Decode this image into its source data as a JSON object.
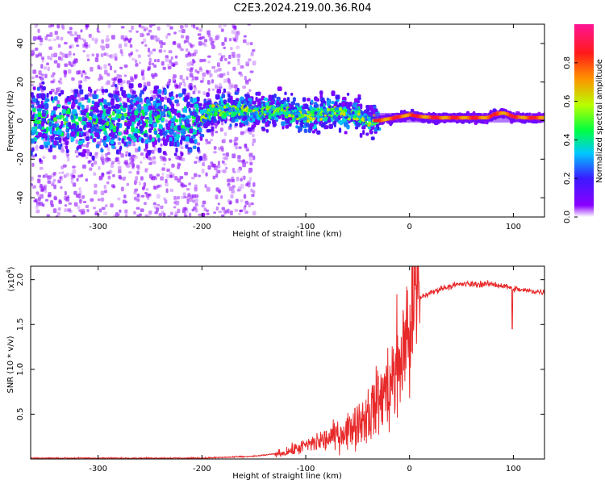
{
  "title": "C2E3.2024.219.00.36.R04",
  "colors": {
    "snr_line": "#e8292a",
    "colormap": [
      "#ffffff",
      "#8b00ff",
      "#3a1aff",
      "#00c8ff",
      "#00ff40",
      "#b8ff00",
      "#ff9000",
      "#ff1a1a",
      "#ff1493"
    ]
  },
  "chart_data": [
    {
      "type": "heatmap",
      "xlabel": "Height of straight line (km)",
      "ylabel": "Frequency (Hz)",
      "xlim": [
        -365,
        130
      ],
      "ylim": [
        -50,
        50
      ],
      "x_ticks": [
        -300,
        -200,
        -100,
        0,
        100
      ],
      "x_tick_labels": [
        "-300",
        "-200",
        "-100",
        "0",
        "100"
      ],
      "y_ticks": [
        -40,
        -20,
        0,
        20,
        40
      ],
      "y_tick_labels": [
        "-40",
        "-20",
        "0",
        "20",
        "40"
      ],
      "colorbar": {
        "label": "Normalized spectral amplitude",
        "range": [
          0.0,
          1.0
        ],
        "ticks": [
          0.0,
          0.2,
          0.4,
          0.6,
          0.8
        ],
        "tick_labels": [
          "0.0",
          "0.2",
          "0.4",
          "0.6",
          "0.8"
        ]
      },
      "ridge": {
        "x": [
          -365,
          -300,
          -200,
          -190,
          -150,
          -120,
          -100,
          -70,
          -50,
          -35,
          -30,
          -20,
          -10,
          0,
          10,
          30,
          60,
          75,
          80,
          90,
          100,
          110,
          130
        ],
        "y": [
          0,
          0,
          0,
          6,
          5,
          5,
          2,
          5,
          3,
          0,
          0,
          1,
          2,
          3,
          2,
          1.5,
          1.5,
          1.5,
          3,
          4,
          2,
          1.5,
          1.5
        ]
      }
    },
    {
      "type": "line",
      "xlabel": "Height of straight line (km)",
      "ylabel": "SNR (10 * v/v)",
      "y_scale_label": "(x10",
      "y_scale_exponent": "4",
      "y_scale_suffix": ")",
      "xlim": [
        -365,
        130
      ],
      "ylim": [
        0,
        2.15
      ],
      "x_ticks": [
        -300,
        -200,
        -100,
        0,
        100
      ],
      "x_tick_labels": [
        "-300",
        "-200",
        "-100",
        "0",
        "100"
      ],
      "y_ticks": [
        0.5,
        1.0,
        1.5,
        2.0
      ],
      "y_tick_labels": [
        "0.5",
        "1.0",
        "1.5",
        "2.0"
      ],
      "series": [
        {
          "x": [
            -365,
            -300,
            -200,
            -150,
            -120,
            -100,
            -80,
            -60,
            -40,
            -20,
            -10,
            0,
            5,
            10,
            20,
            30,
            40,
            50,
            60,
            80,
            95,
            100,
            110,
            130
          ],
          "y": [
            0.01,
            0.01,
            0.01,
            0.03,
            0.07,
            0.15,
            0.22,
            0.32,
            0.5,
            0.8,
            1.05,
            1.5,
            1.75,
            1.8,
            1.85,
            1.9,
            1.93,
            1.95,
            1.95,
            1.95,
            1.92,
            1.9,
            1.88,
            1.86
          ]
        }
      ]
    }
  ]
}
